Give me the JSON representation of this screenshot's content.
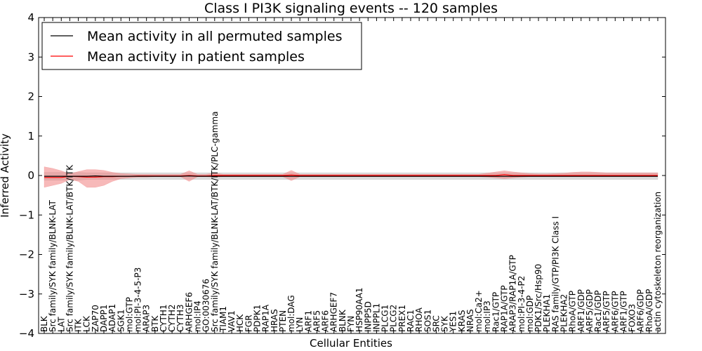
{
  "chart_data": {
    "type": "line",
    "title": "Class I PI3K signaling events -- 120 samples",
    "xlabel": "Cellular Entities",
    "ylabel": "Inferred Activity",
    "ylim": [
      -4,
      4
    ],
    "yticks": [
      "−4",
      "−3",
      "−2",
      "−1",
      "0",
      "1",
      "2",
      "3",
      "4"
    ],
    "grid": false,
    "legend_position": "top-left",
    "colors": {
      "permuted_line": "#000000",
      "patient_line": "#ff0000",
      "permuted_band": "#b0b0b0",
      "patient_band": "#f08080"
    },
    "categories": [
      "BLK",
      "Src family/SYK family/BLNK-LAT",
      "LAT",
      "Src family/SYK family/BLNK-LAT/BTK/ITK",
      "ITK",
      "LCK",
      "ZAP70",
      "DAPP1",
      "ADAP1",
      "SGK1",
      "mol:GTP",
      "mol:PI-3-4-5-P3",
      "ARAP3",
      "BTK",
      "CYTH1",
      "CYTH2",
      "CYTH3",
      "ARHGEF6",
      "mol:IP4",
      "GO:0030676",
      "Src family/SYK family/BLNK-LAT/BTK/ITK/PLC-gamma",
      "TIAM1",
      "VAV1",
      "HCK",
      "FGR",
      "PDPK1",
      "RAP1A",
      "HRAS",
      "PTEN",
      "mol:DAG",
      "LYN",
      "ARF1",
      "ARF5",
      "ARF6",
      "ARHGEF7",
      "BLNK",
      "FYN",
      "HSP90AA1",
      "INPP5D",
      "INPPL1",
      "PLCG1",
      "PLCG2",
      "PREX1",
      "RAC1",
      "RHOA",
      "SOS1",
      "SRC",
      "SYK",
      "YES1",
      "KRAS",
      "NRAS",
      "mol:Ca2+",
      "mol:IP3",
      "Rac1/GTP",
      "RAP1A/GTP",
      "ARAP3/RAP1A/GTP",
      "mol:PI-3-4-P2",
      "mol:GDP",
      "PDK1/Src/Hsp90",
      "PLEKHA1",
      "RAS family/GTP/PI3K Class I",
      "PLEKHA2",
      "RhoA/GTP",
      "ARF1/GDP",
      "ARF5/GDP",
      "Rac1/GDP",
      "ARF5/GTP",
      "ARF6/GTP",
      "ARF1/GTP",
      "FOXO3",
      "ARF6/GDP",
      "RhoA/GDP",
      "actin cytoskeleton reorganization"
    ],
    "series": [
      {
        "name": "Mean activity in all permuted samples",
        "values": [
          -0.02,
          -0.02,
          -0.02,
          -0.02,
          -0.02,
          -0.02,
          -0.01,
          -0.02,
          -0.02,
          -0.02,
          -0.02,
          -0.02,
          -0.02,
          -0.02,
          -0.02,
          -0.02,
          -0.02,
          -0.01,
          -0.02,
          -0.02,
          -0.02,
          -0.02,
          -0.02,
          -0.02,
          -0.02,
          -0.02,
          -0.02,
          -0.02,
          -0.02,
          -0.02,
          -0.02,
          -0.02,
          -0.02,
          -0.02,
          -0.02,
          -0.02,
          -0.02,
          -0.02,
          -0.02,
          -0.02,
          -0.02,
          -0.02,
          -0.02,
          -0.02,
          -0.02,
          -0.02,
          -0.02,
          -0.02,
          -0.02,
          -0.02,
          -0.02,
          -0.02,
          -0.02,
          -0.02,
          -0.02,
          -0.02,
          -0.02,
          -0.02,
          -0.02,
          -0.02,
          -0.02,
          -0.02,
          -0.02,
          -0.02,
          -0.02,
          -0.02,
          -0.02,
          -0.02,
          -0.02,
          -0.02,
          -0.02,
          -0.02,
          -0.02
        ],
        "band_lower": [
          -0.12,
          -0.12,
          -0.12,
          -0.12,
          -0.12,
          -0.1,
          -0.1,
          -0.1,
          -0.1,
          -0.1,
          -0.1,
          -0.1,
          -0.1,
          -0.1,
          -0.1,
          -0.1,
          -0.1,
          -0.1,
          -0.1,
          -0.1,
          -0.1,
          -0.1,
          -0.1,
          -0.1,
          -0.1,
          -0.1,
          -0.1,
          -0.1,
          -0.1,
          -0.1,
          -0.1,
          -0.1,
          -0.1,
          -0.1,
          -0.1,
          -0.1,
          -0.1,
          -0.1,
          -0.1,
          -0.1,
          -0.1,
          -0.1,
          -0.1,
          -0.1,
          -0.1,
          -0.1,
          -0.1,
          -0.1,
          -0.1,
          -0.1,
          -0.1,
          -0.1,
          -0.1,
          -0.1,
          -0.1,
          -0.1,
          -0.1,
          -0.1,
          -0.1,
          -0.1,
          -0.1,
          -0.1,
          -0.1,
          -0.1,
          -0.1,
          -0.1,
          -0.1,
          -0.1,
          -0.1,
          -0.1,
          -0.1,
          -0.1,
          -0.1
        ],
        "band_upper": [
          0.08,
          0.08,
          0.08,
          0.08,
          0.08,
          0.07,
          0.07,
          0.07,
          0.07,
          0.07,
          0.07,
          0.07,
          0.07,
          0.07,
          0.07,
          0.07,
          0.07,
          0.07,
          0.07,
          0.07,
          0.07,
          0.07,
          0.07,
          0.07,
          0.07,
          0.07,
          0.07,
          0.07,
          0.07,
          0.07,
          0.07,
          0.07,
          0.07,
          0.07,
          0.07,
          0.07,
          0.07,
          0.07,
          0.07,
          0.07,
          0.07,
          0.07,
          0.07,
          0.07,
          0.07,
          0.07,
          0.07,
          0.07,
          0.07,
          0.07,
          0.07,
          0.07,
          0.07,
          0.07,
          0.07,
          0.07,
          0.07,
          0.07,
          0.07,
          0.07,
          0.07,
          0.07,
          0.07,
          0.07,
          0.07,
          0.07,
          0.07,
          0.07,
          0.07,
          0.07,
          0.07,
          0.07,
          0.07
        ]
      },
      {
        "name": "Mean activity in patient samples",
        "values": [
          -0.05,
          -0.05,
          -0.05,
          -0.02,
          -0.03,
          -0.04,
          -0.04,
          -0.03,
          -0.03,
          -0.02,
          -0.02,
          -0.01,
          -0.01,
          -0.01,
          -0.01,
          -0.01,
          -0.01,
          0.0,
          -0.01,
          -0.01,
          0.0,
          0.0,
          0.0,
          0.0,
          0.0,
          0.0,
          0.0,
          0.0,
          0.0,
          0.01,
          0.0,
          0.0,
          0.0,
          0.0,
          0.0,
          0.0,
          0.0,
          0.0,
          0.0,
          0.0,
          0.0,
          0.0,
          0.0,
          0.0,
          0.0,
          0.0,
          0.0,
          0.0,
          0.0,
          0.0,
          0.0,
          0.0,
          0.0,
          0.0,
          0.02,
          0.0,
          0.0,
          0.0,
          0.0,
          0.0,
          0.0,
          0.0,
          0.0,
          0.0,
          0.0,
          0.0,
          0.0,
          0.0,
          0.0,
          0.0,
          0.0,
          0.0,
          0.0
        ],
        "band_lower": [
          -0.3,
          -0.25,
          -0.2,
          -0.1,
          -0.15,
          -0.3,
          -0.3,
          -0.25,
          -0.15,
          -0.08,
          -0.06,
          -0.04,
          -0.04,
          -0.03,
          -0.03,
          -0.03,
          -0.03,
          -0.15,
          -0.03,
          -0.03,
          -0.04,
          -0.03,
          -0.03,
          -0.03,
          -0.03,
          -0.03,
          -0.03,
          -0.03,
          -0.03,
          -0.13,
          -0.03,
          -0.03,
          -0.03,
          -0.03,
          -0.03,
          -0.03,
          -0.03,
          -0.03,
          -0.03,
          -0.03,
          -0.03,
          -0.03,
          -0.03,
          -0.03,
          -0.03,
          -0.03,
          -0.03,
          -0.03,
          -0.03,
          -0.03,
          -0.03,
          -0.03,
          -0.04,
          -0.06,
          -0.08,
          -0.06,
          -0.04,
          -0.03,
          -0.03,
          -0.03,
          -0.03,
          -0.03,
          -0.03,
          -0.03,
          -0.03,
          -0.03,
          -0.03,
          -0.03,
          -0.03,
          -0.03,
          -0.03,
          -0.03,
          -0.03
        ],
        "band_upper": [
          0.22,
          0.18,
          0.12,
          0.04,
          0.1,
          0.15,
          0.15,
          0.13,
          0.08,
          0.05,
          0.04,
          0.03,
          0.03,
          0.03,
          0.03,
          0.03,
          0.03,
          0.12,
          0.03,
          0.03,
          0.06,
          0.03,
          0.03,
          0.03,
          0.03,
          0.03,
          0.03,
          0.03,
          0.03,
          0.13,
          0.03,
          0.03,
          0.03,
          0.03,
          0.03,
          0.03,
          0.03,
          0.03,
          0.03,
          0.03,
          0.03,
          0.03,
          0.03,
          0.03,
          0.03,
          0.03,
          0.03,
          0.03,
          0.03,
          0.03,
          0.03,
          0.03,
          0.06,
          0.09,
          0.12,
          0.09,
          0.07,
          0.05,
          0.04,
          0.04,
          0.05,
          0.06,
          0.08,
          0.09,
          0.09,
          0.08,
          0.07,
          0.07,
          0.07,
          0.07,
          0.07,
          0.07,
          0.07
        ]
      }
    ]
  }
}
